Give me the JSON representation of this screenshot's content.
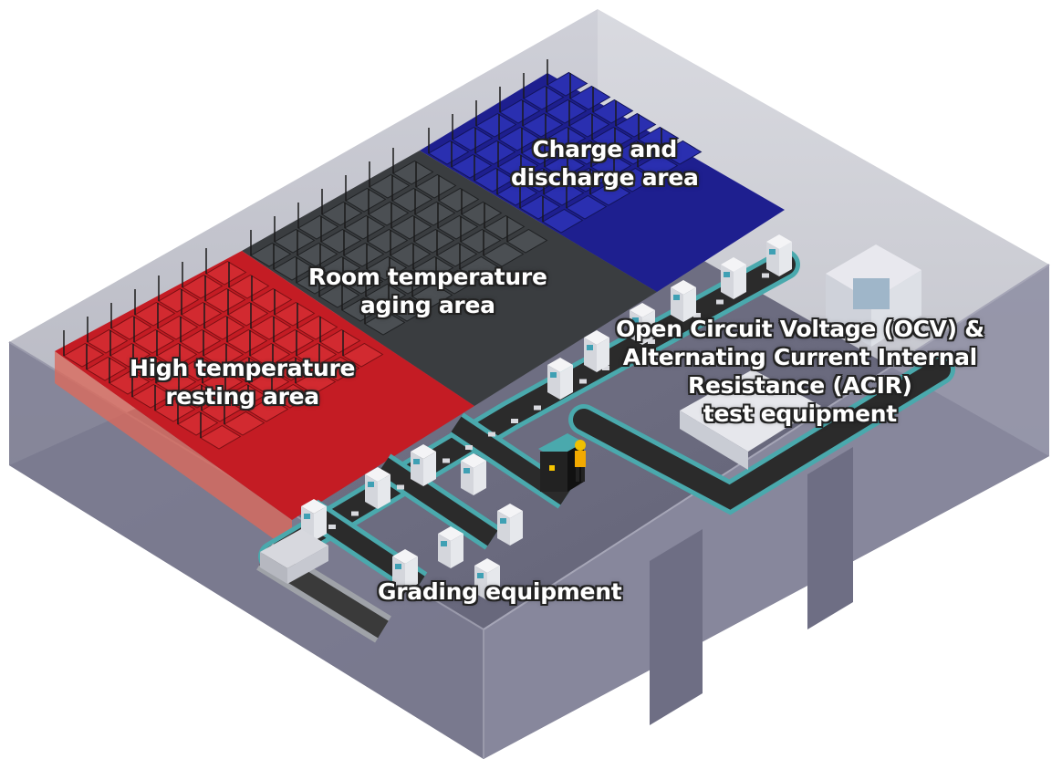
{
  "areas": {
    "charge": {
      "line1": "Charge and",
      "line2": "discharge area",
      "color": "#1e1f8f"
    },
    "aging": {
      "line1": "Room temperature",
      "line2": "aging area",
      "color": "#3a3d40"
    },
    "high_temp": {
      "line1": "High temperature",
      "line2": "resting area",
      "color": "#c41c24"
    },
    "ocv": {
      "line1": "Open Circuit Voltage (OCV) &",
      "line2": "Alternating Current Internal",
      "line3": "Resistance (ACIR)",
      "line4": "test equipment"
    },
    "grading": {
      "line1": "Grading equipment"
    }
  },
  "colors": {
    "floor": "#6b6b80",
    "wall_back": "#b9b9c4",
    "conveyor_belt": "#2b2b2b",
    "machine_base": "#4aa9ad",
    "machine_body": "#f2f2f2"
  }
}
